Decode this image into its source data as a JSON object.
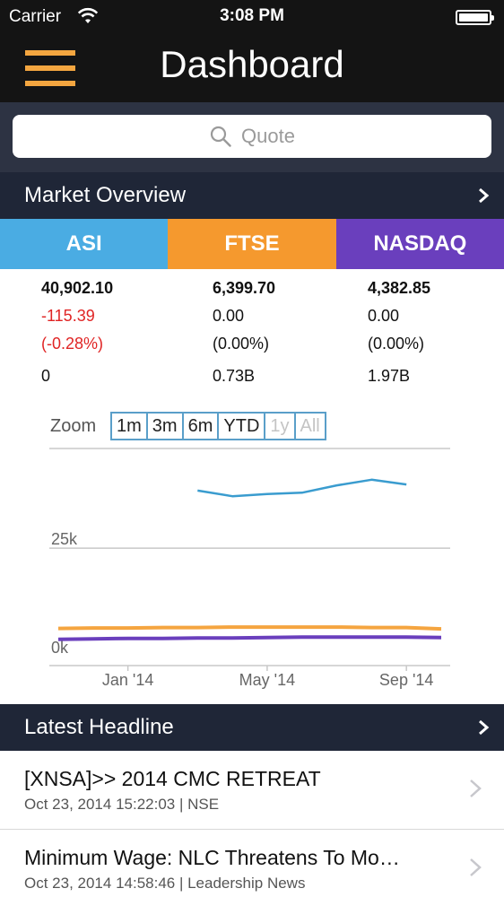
{
  "status_bar": {
    "carrier": "Carrier",
    "time": "3:08 PM"
  },
  "nav": {
    "title": "Dashboard"
  },
  "search": {
    "placeholder": "Quote"
  },
  "market_overview": {
    "title": "Market Overview",
    "indices": [
      {
        "name": "ASI",
        "color": "#4aace3",
        "value": "40,902.10",
        "change": "-115.39",
        "percent": "(-0.28%)",
        "volume": "0"
      },
      {
        "name": "FTSE",
        "color": "#f5992e",
        "value": "6,399.70",
        "change": "0.00",
        "percent": "(0.00%)",
        "volume": "0.73B"
      },
      {
        "name": "NASDAQ",
        "color": "#6a3fbd",
        "value": "4,382.85",
        "change": "0.00",
        "percent": "(0.00%)",
        "volume": "1.97B"
      }
    ]
  },
  "chart": {
    "zoom_label": "Zoom",
    "zoom_buttons": [
      "1m",
      "3m",
      "6m",
      "YTD",
      "1y",
      "All"
    ],
    "zoom_disabled": [
      "1y",
      "All"
    ],
    "y_ticks": [
      "25k",
      "0k"
    ],
    "x_ticks": [
      "Jan '14",
      "May '14",
      "Sep '14"
    ]
  },
  "chart_data": {
    "type": "line",
    "title": "",
    "xlabel": "",
    "ylabel": "",
    "x": [
      "2013-11",
      "2013-12",
      "2014-01",
      "2014-02",
      "2014-03",
      "2014-04",
      "2014-05",
      "2014-06",
      "2014-07",
      "2014-08",
      "2014-09",
      "2014-10"
    ],
    "ylim": [
      0,
      48000
    ],
    "x_ticks": [
      "Jan '14",
      "May '14",
      "Sep '14"
    ],
    "y_ticks": [
      "0k",
      "25k"
    ],
    "legend": "none",
    "grid": true,
    "series": [
      {
        "color": "#3a9ccf",
        "x": [
          "2014-03",
          "2014-04",
          "2014-05",
          "2014-06",
          "2014-07",
          "2014-08",
          "2014-09"
        ],
        "values": [
          38300,
          37000,
          37500,
          37800,
          39500,
          40800,
          39700
        ]
      },
      {
        "color": "#f5a540",
        "values": [
          6500,
          6600,
          6600,
          6700,
          6700,
          6800,
          6800,
          6800,
          6800,
          6700,
          6700,
          6400
        ]
      },
      {
        "color": "#6a3fbd",
        "values": [
          4000,
          4100,
          4200,
          4200,
          4300,
          4300,
          4400,
          4500,
          4500,
          4500,
          4500,
          4400
        ]
      }
    ]
  },
  "latest_headline": {
    "title": "Latest Headline",
    "items": [
      {
        "title": "[XNSA]>> 2014 CMC RETREAT",
        "meta": "Oct 23, 2014 15:22:03 | NSE"
      },
      {
        "title": "Minimum Wage: NLC Threatens To Mo…",
        "meta": "Oct 23, 2014 14:58:46 | Leadership News"
      }
    ]
  }
}
